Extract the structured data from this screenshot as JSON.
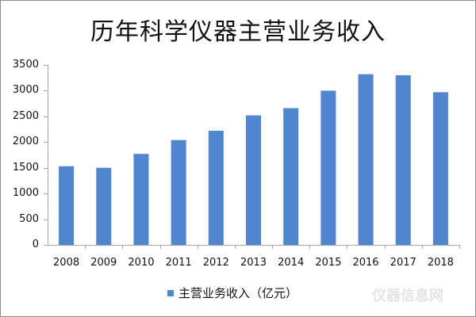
{
  "chart_data": {
    "type": "bar",
    "title": "历年科学仪器主营业务收入",
    "xlabel": "",
    "ylabel": "",
    "categories": [
      "2008",
      "2009",
      "2010",
      "2011",
      "2012",
      "2013",
      "2014",
      "2015",
      "2016",
      "2017",
      "2018"
    ],
    "series": [
      {
        "name": "主营业务收入（亿元）",
        "values": [
          1530,
          1500,
          1770,
          2040,
          2220,
          2520,
          2660,
          3000,
          3320,
          3300,
          2970
        ],
        "color": "#4f86cf"
      }
    ],
    "ylim": [
      0,
      3500
    ],
    "yticks": [
      0,
      500,
      1000,
      1500,
      2000,
      2500,
      3000,
      3500
    ],
    "grid": false,
    "legend_position": "bottom"
  },
  "watermark": "仪器信息网"
}
